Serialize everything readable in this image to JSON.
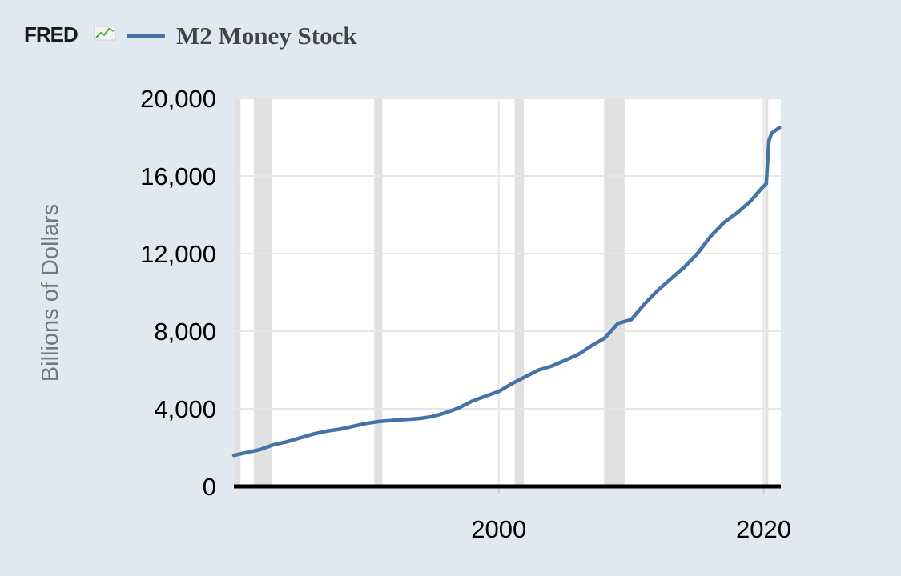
{
  "header": {
    "logo_text": "FRED",
    "logo_icon": "line-chart-icon"
  },
  "colors": {
    "series": "#4572a7",
    "recession": "#e1e1e1",
    "grid": "#e6e6e6",
    "page_bg": "#e1e9f0"
  },
  "chart_data": {
    "type": "line",
    "title": "",
    "legend": [
      "M2 Money Stock"
    ],
    "legend_placement": "top",
    "xlabel": "",
    "ylabel": "Billions of Dollars",
    "xlim": [
      1980.0,
      2021.3
    ],
    "ylim": [
      0,
      20000
    ],
    "yticks": [
      0,
      4000,
      8000,
      12000,
      16000,
      20000
    ],
    "ytick_labels": [
      "0",
      "4,000",
      "8,000",
      "12,000",
      "16,000",
      "20,000"
    ],
    "xticks": [
      2000,
      2020
    ],
    "xtick_labels": [
      "2000",
      "2020"
    ],
    "grid": true,
    "recessions": [
      [
        1980.0,
        1980.5
      ],
      [
        1981.5,
        1982.9
      ],
      [
        1990.6,
        1991.2
      ],
      [
        2001.2,
        2001.9
      ],
      [
        2007.95,
        2009.5
      ],
      [
        2020.1,
        2020.35
      ]
    ],
    "series": [
      {
        "name": "M2 Money Stock",
        "x": [
          1980.0,
          1981.0,
          1982.0,
          1983.0,
          1984.0,
          1985.0,
          1986.0,
          1987.0,
          1988.0,
          1989.0,
          1990.0,
          1991.0,
          1992.0,
          1993.0,
          1994.0,
          1995.0,
          1996.0,
          1997.0,
          1998.0,
          1999.0,
          2000.0,
          2001.0,
          2002.0,
          2003.0,
          2004.0,
          2005.0,
          2006.0,
          2007.0,
          2008.0,
          2008.8,
          2009.0,
          2010.0,
          2011.0,
          2012.0,
          2013.0,
          2014.0,
          2015.0,
          2016.0,
          2017.0,
          2018.0,
          2019.0,
          2019.9,
          2020.2,
          2020.4,
          2020.6,
          2020.8,
          2021.0,
          2021.2
        ],
        "values": [
          1600,
          1750,
          1900,
          2150,
          2300,
          2500,
          2700,
          2850,
          2950,
          3100,
          3250,
          3350,
          3400,
          3450,
          3500,
          3600,
          3800,
          4050,
          4400,
          4650,
          4900,
          5300,
          5650,
          6000,
          6200,
          6500,
          6800,
          7250,
          7650,
          8250,
          8400,
          8600,
          9400,
          10100,
          10700,
          11300,
          12000,
          12900,
          13600,
          14100,
          14700,
          15400,
          15600,
          17800,
          18200,
          18300,
          18400,
          18500
        ]
      }
    ]
  }
}
